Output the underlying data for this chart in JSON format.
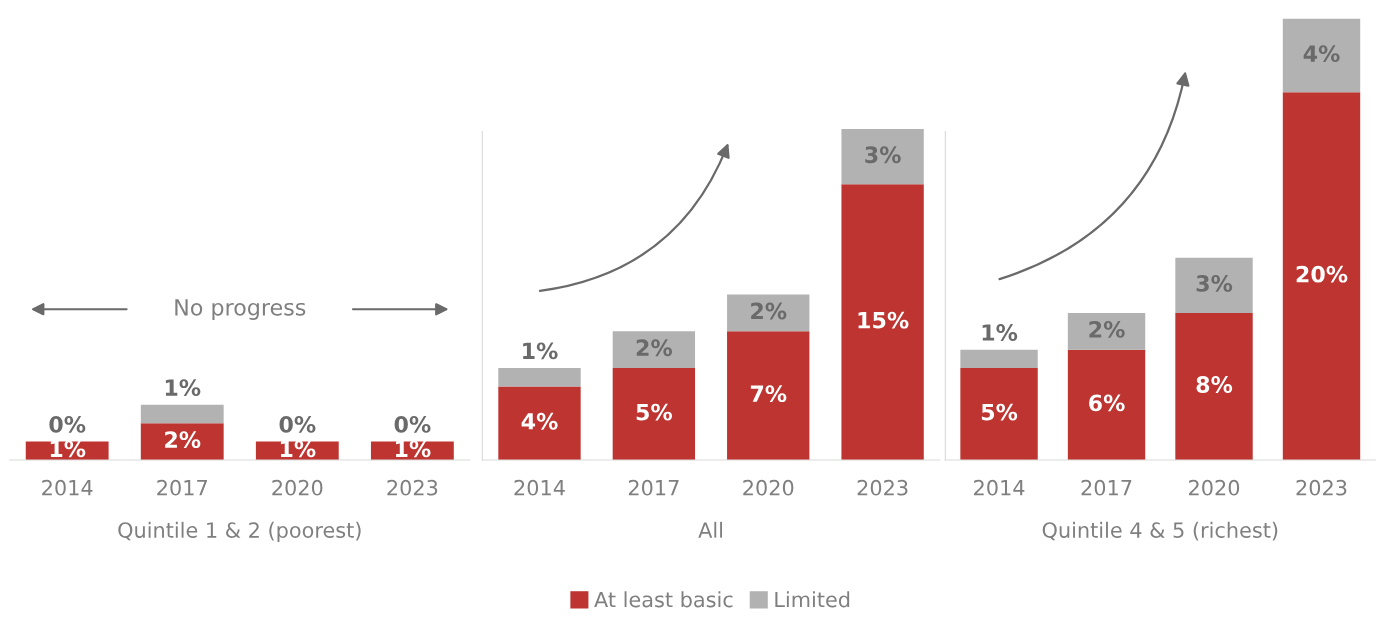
{
  "chart_data": [
    {
      "type": "bar",
      "stacked": true,
      "categories": [
        "2014",
        "2017",
        "2020",
        "2023"
      ],
      "xlabel": "Quintile 1 & 2 (poorest)",
      "tick_labels": "x",
      "annotations": [
        "No progress"
      ],
      "series": [
        {
          "color": "#be3430",
          "values": [
            1,
            2,
            1,
            1
          ],
          "value_labels": [
            "1%",
            "2%",
            "1%",
            "1%"
          ]
        },
        {
          "color": "#b2b2b2",
          "values": [
            0,
            1,
            0,
            0
          ],
          "value_labels": [
            "0%",
            "1%",
            "0%",
            "0%"
          ]
        }
      ]
    },
    {
      "type": "bar",
      "stacked": true,
      "categories": [
        "2014",
        "2017",
        "2020",
        "2023"
      ],
      "xlabel": "All",
      "tick_labels": "x",
      "legend": "bottom",
      "series": [
        {
          "name": "At least basic",
          "color": "#be3430",
          "values": [
            4,
            5,
            7,
            15
          ],
          "value_labels": [
            "4%",
            "5%",
            "7%",
            "15%"
          ]
        },
        {
          "name": "Limited",
          "color": "#b2b2b2",
          "values": [
            1,
            2,
            2,
            3
          ],
          "value_labels": [
            "1%",
            "2%",
            "2%",
            "3%"
          ]
        }
      ]
    },
    {
      "type": "bar",
      "stacked": true,
      "categories": [
        "2014",
        "2017",
        "2020",
        "2023"
      ],
      "xlabel": "Quintile 4 & 5 (richest)",
      "tick_labels": "x",
      "series": [
        {
          "color": "#be3430",
          "values": [
            5,
            6,
            8,
            20
          ],
          "value_labels": [
            "5%",
            "6%",
            "8%",
            "20%"
          ]
        },
        {
          "color": "#b2b2b2",
          "values": [
            1,
            2,
            3,
            4
          ],
          "value_labels": [
            "1%",
            "2%",
            "3%",
            "4%"
          ]
        }
      ]
    }
  ]
}
